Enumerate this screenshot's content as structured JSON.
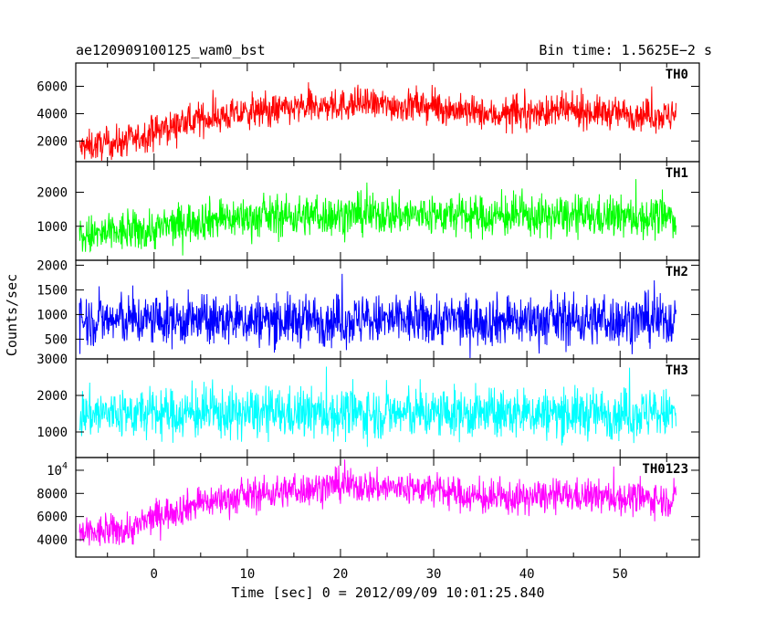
{
  "header": {
    "file_label": "ae120909100125_wam0_bst",
    "bin_time": "Bin time: 1.5625E−2 s"
  },
  "chart_data": {
    "type": "line",
    "x": {
      "label": "Time [sec] 0 = 2012/09/09 10:01:25.840",
      "range": [
        -8.4,
        58.5
      ],
      "ticks": [
        0,
        10,
        20,
        30,
        40,
        50
      ],
      "data_range": [
        -8.0,
        56.0
      ]
    },
    "ylabel": "Counts/sec",
    "panels": [
      {
        "name": "TH0",
        "color": "#ff0000",
        "ylim": [
          500,
          7700
        ],
        "ticks": [
          {
            "v": 2000,
            "t": "2000"
          },
          {
            "v": 4000,
            "t": "4000"
          },
          {
            "v": 6000,
            "t": "6000"
          }
        ],
        "profile": [
          [
            -8,
            1500
          ],
          [
            -2,
            2100
          ],
          [
            0,
            2700
          ],
          [
            5,
            3600
          ],
          [
            12,
            4200
          ],
          [
            22,
            4700
          ],
          [
            30,
            4500
          ],
          [
            36,
            3900
          ],
          [
            45,
            4200
          ],
          [
            56,
            3800
          ]
        ],
        "noise": 800
      },
      {
        "name": "TH1",
        "color": "#00ff00",
        "ylim": [
          0,
          2900
        ],
        "ticks": [
          {
            "v": 1000,
            "t": "1000"
          },
          {
            "v": 2000,
            "t": "2000"
          }
        ],
        "profile": [
          [
            -8,
            700
          ],
          [
            0,
            900
          ],
          [
            5,
            1200
          ],
          [
            15,
            1300
          ],
          [
            25,
            1350
          ],
          [
            35,
            1300
          ],
          [
            56,
            1250
          ]
        ],
        "noise": 420
      },
      {
        "name": "TH2",
        "color": "#0000ff",
        "ylim": [
          100,
          2100
        ],
        "ticks": [
          {
            "v": 500,
            "t": "500"
          },
          {
            "v": 1000,
            "t": "1000"
          },
          {
            "v": 1500,
            "t": "1500"
          },
          {
            "v": 2000,
            "t": "2000"
          }
        ],
        "profile": [
          [
            -8,
            880
          ],
          [
            56,
            880
          ]
        ],
        "noise": 360
      },
      {
        "name": "TH3",
        "color": "#00ffff",
        "ylim": [
          300,
          3000
        ],
        "ticks": [
          {
            "v": 1000,
            "t": "1000"
          },
          {
            "v": 2000,
            "t": "2000"
          },
          {
            "v": 3000,
            "t": "3000"
          }
        ],
        "profile": [
          [
            -8,
            1500
          ],
          [
            56,
            1500
          ]
        ],
        "noise": 480
      },
      {
        "name": "TH0123",
        "color": "#ff00ff",
        "ylim": [
          2500,
          11100
        ],
        "ticks": [
          {
            "v": 4000,
            "t": "4000"
          },
          {
            "v": 6000,
            "t": "6000"
          },
          {
            "v": 8000,
            "t": "8000"
          },
          {
            "v": 10000,
            "t": "10",
            "sup": "4"
          }
        ],
        "profile": [
          [
            -8,
            4400
          ],
          [
            -2,
            5000
          ],
          [
            0,
            6000
          ],
          [
            5,
            7200
          ],
          [
            12,
            8000
          ],
          [
            20,
            8700
          ],
          [
            30,
            8300
          ],
          [
            36,
            7500
          ],
          [
            45,
            7800
          ],
          [
            56,
            7400
          ]
        ],
        "noise": 1000
      }
    ]
  }
}
